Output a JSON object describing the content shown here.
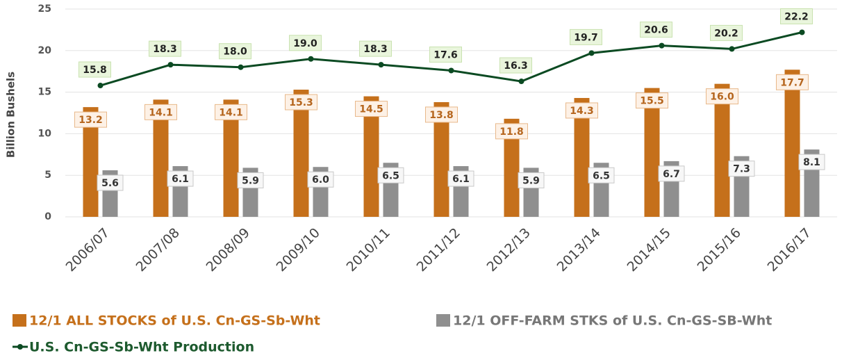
{
  "chart_data": {
    "type": "bar",
    "y_label": "Billion Bushels",
    "categories": [
      "2006/07",
      "2007/08",
      "2008/09",
      "2009/10",
      "2010/11",
      "2011/12",
      "2012/13",
      "2013/14",
      "2014/15",
      "2015/16",
      "2016/17"
    ],
    "series": [
      {
        "name": "12/1 ALL STOCKS of U.S. Cn-GS-Sb-Wht",
        "color": "#c5701b",
        "type": "bar",
        "values": [
          13.2,
          14.1,
          14.1,
          15.3,
          14.5,
          13.8,
          11.8,
          14.3,
          15.5,
          16.0,
          17.7
        ],
        "value_labels": [
          "13.2",
          "14.1",
          "14.1",
          "15.3",
          "14.5",
          "13.8",
          "11.8",
          "14.3",
          "15.5",
          "16.0",
          "17.7"
        ]
      },
      {
        "name": "12/1 OFF-FARM STKS of U.S. Cn-GS-SB-Wht",
        "color": "#8f8f8f",
        "type": "bar",
        "values": [
          5.6,
          6.1,
          5.9,
          6.0,
          6.5,
          6.1,
          5.9,
          6.5,
          6.7,
          7.3,
          8.1
        ],
        "value_labels": [
          "5.6",
          "6.1",
          "5.9",
          "6.0",
          "6.5",
          "6.1",
          "5.9",
          "6.5",
          "6.7",
          "7.3",
          "8.1"
        ]
      },
      {
        "name": "U.S. Cn-GS-Sb-Wht Production",
        "color": "#0b4a22",
        "type": "line",
        "values": [
          15.8,
          18.3,
          18.0,
          19.0,
          18.3,
          17.6,
          16.3,
          19.7,
          20.6,
          20.2,
          22.2
        ],
        "value_labels": [
          "15.8",
          "18.3",
          "18.0",
          "19.0",
          "18.3",
          "17.6",
          "16.3",
          "19.7",
          "20.6",
          "20.2",
          "22.2"
        ]
      }
    ],
    "ylim": [
      0,
      25
    ],
    "yticks": [
      0,
      5,
      10,
      15,
      20,
      25
    ],
    "grid": true,
    "legend": "bottom"
  }
}
